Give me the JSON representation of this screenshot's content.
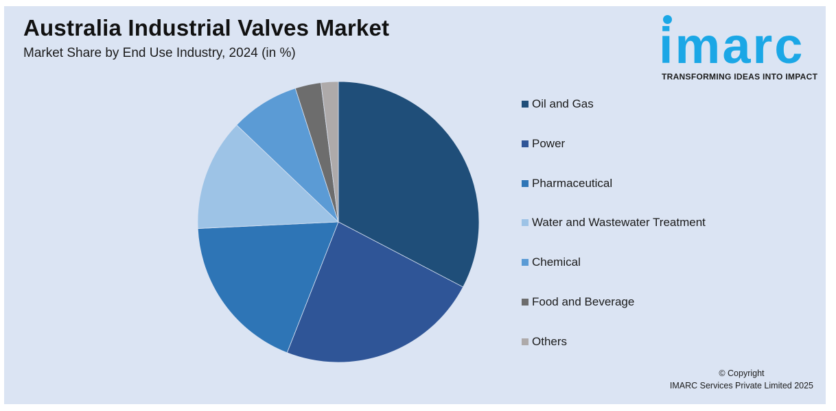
{
  "title": "Australia Industrial Valves Market",
  "subtitle": "Market Share by End Use Industry, 2024 (in %)",
  "logo": {
    "word": "imarc",
    "tagline": "TRANSFORMING IDEAS INTO IMPACT",
    "color": "#1ba7e6"
  },
  "copyright": {
    "line1": "© Copyright",
    "line2": "IMARC Services Private Limited 2025"
  },
  "chart_data": {
    "type": "pie",
    "title": "Australia Industrial Valves Market",
    "subtitle": "Market Share by End Use Industry, 2024 (in %)",
    "legend_position": "right",
    "slices": [
      {
        "label": "Oil and Gas",
        "value": 33,
        "color": "#1f4e79"
      },
      {
        "label": "Power",
        "value": 23.5,
        "color": "#2f5597"
      },
      {
        "label": "Pharmaceutical",
        "value": 18.5,
        "color": "#2e75b6"
      },
      {
        "label": "Water and Wastewater Treatment",
        "value": 13,
        "color": "#9dc3e6"
      },
      {
        "label": "Chemical",
        "value": 8,
        "color": "#5b9bd5"
      },
      {
        "label": "Food and Beverage",
        "value": 3,
        "color": "#6d6d6d"
      },
      {
        "label": "Others",
        "value": 2,
        "color": "#aeaaaa"
      }
    ]
  }
}
